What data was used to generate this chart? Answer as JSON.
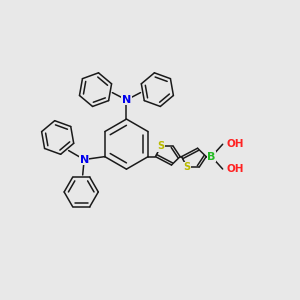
{
  "bg_color": "#e8e8e8",
  "bond_color": "#1a1a1a",
  "N_color": "#0000ee",
  "S_color": "#bbbb00",
  "B_color": "#22bb22",
  "O_color": "#ff2222",
  "bond_lw": 1.1,
  "figsize": [
    3.0,
    3.0
  ],
  "dpi": 100,
  "xlim": [
    0,
    10
  ],
  "ylim": [
    0,
    10
  ]
}
